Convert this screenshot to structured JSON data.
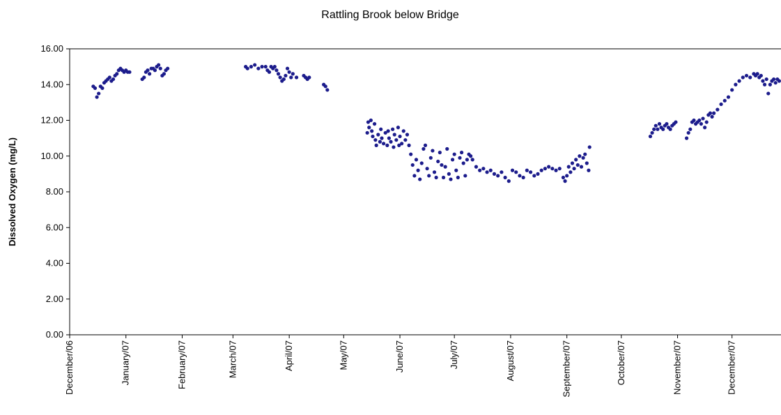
{
  "chart_data": {
    "type": "scatter",
    "title": "Rattling Brook below Bridge",
    "y_label": "Dissolved Oxygen (mg/L)",
    "xlim": [
      0,
      392
    ],
    "ylim": [
      0,
      16
    ],
    "xticks": [
      {
        "value": 0,
        "label": "December/06"
      },
      {
        "value": 31,
        "label": "January/07"
      },
      {
        "value": 62,
        "label": "February/07"
      },
      {
        "value": 90,
        "label": "March/07"
      },
      {
        "value": 121,
        "label": "April/07"
      },
      {
        "value": 151,
        "label": "May/07"
      },
      {
        "value": 182,
        "label": "June/07"
      },
      {
        "value": 212,
        "label": "July/07"
      },
      {
        "value": 243,
        "label": "August/07"
      },
      {
        "value": 274,
        "label": "September/07"
      },
      {
        "value": 304,
        "label": "October/07"
      },
      {
        "value": 335,
        "label": "November/07"
      },
      {
        "value": 365,
        "label": "December/07"
      }
    ],
    "yticks": [
      {
        "value": 0,
        "label": "0.00"
      },
      {
        "value": 2,
        "label": "2.00"
      },
      {
        "value": 4,
        "label": "4.00"
      },
      {
        "value": 6,
        "label": "6.00"
      },
      {
        "value": 8,
        "label": "8.00"
      },
      {
        "value": 10,
        "label": "10.00"
      },
      {
        "value": 12,
        "label": "12.00"
      },
      {
        "value": 14,
        "label": "14.00"
      },
      {
        "value": 16,
        "label": "16.00"
      }
    ],
    "grid": false,
    "series": [
      {
        "color": "#1c1c8c",
        "x": [
          13,
          14,
          15,
          16,
          17,
          18,
          19,
          20,
          21,
          22,
          23,
          24,
          25,
          26,
          27,
          28,
          29,
          30,
          31,
          32,
          33,
          40,
          41,
          42,
          43,
          44,
          45,
          46,
          47,
          48,
          49,
          50,
          51,
          52,
          53,
          54,
          97,
          98,
          100,
          102,
          104,
          106,
          108,
          109,
          110,
          111,
          112,
          113,
          114,
          115,
          116,
          117,
          118,
          119,
          120,
          121,
          122,
          123,
          125,
          129,
          130,
          131,
          132,
          140,
          141,
          142,
          164,
          164.5,
          165,
          166,
          166.5,
          167,
          168,
          168.5,
          169,
          170,
          171,
          171.5,
          172,
          173,
          174,
          175,
          175.5,
          176,
          177,
          178,
          178.5,
          179,
          180,
          181,
          181.5,
          182,
          183,
          184,
          185,
          186,
          187,
          188,
          189,
          190,
          191,
          192,
          193,
          194,
          195,
          196,
          197,
          198,
          199,
          200,
          201,
          202,
          203,
          204,
          205,
          206,
          207,
          208,
          209,
          210,
          211,
          212,
          213,
          214,
          215,
          216,
          217,
          218,
          219,
          220,
          221,
          222,
          224,
          226,
          228,
          230,
          232,
          234,
          236,
          238,
          240,
          242,
          244,
          246,
          248,
          250,
          252,
          254,
          256,
          258,
          260,
          262,
          264,
          266,
          268,
          270,
          272,
          273,
          274,
          275,
          276,
          277,
          278,
          279,
          280,
          281,
          282,
          283,
          284,
          285,
          286,
          286.5,
          320,
          321,
          322,
          323,
          324,
          325,
          326,
          327,
          328,
          329,
          330,
          331,
          332,
          333,
          334,
          340,
          341,
          342,
          343,
          344,
          345,
          346,
          347,
          348,
          349,
          350,
          351,
          352,
          353,
          354,
          355,
          357,
          359,
          361,
          363,
          365,
          367,
          369,
          371,
          373,
          375,
          377,
          378,
          379,
          380,
          381,
          382,
          383,
          384,
          385,
          386,
          387,
          388,
          389,
          390,
          391
        ],
        "values": [
          13.9,
          13.8,
          13.3,
          13.5,
          13.9,
          13.8,
          14.1,
          14.2,
          14.3,
          14.4,
          14.2,
          14.3,
          14.5,
          14.6,
          14.8,
          14.9,
          14.8,
          14.7,
          14.8,
          14.7,
          14.7,
          14.3,
          14.4,
          14.7,
          14.8,
          14.6,
          14.9,
          14.9,
          14.8,
          15.0,
          15.1,
          14.9,
          14.5,
          14.6,
          14.8,
          14.9,
          15.0,
          14.9,
          15.0,
          15.1,
          14.9,
          15.0,
          15.0,
          14.8,
          14.7,
          15.0,
          14.9,
          15.0,
          14.8,
          14.6,
          14.4,
          14.2,
          14.3,
          14.5,
          14.9,
          14.7,
          14.4,
          14.6,
          14.4,
          14.5,
          14.4,
          14.3,
          14.4,
          14.0,
          13.9,
          13.7,
          11.3,
          11.9,
          11.6,
          12.0,
          11.4,
          11.1,
          11.8,
          10.9,
          10.6,
          11.2,
          10.8,
          11.5,
          11.0,
          10.7,
          11.3,
          10.6,
          11.4,
          11.0,
          10.8,
          11.5,
          10.5,
          11.2,
          10.9,
          11.6,
          10.6,
          11.1,
          10.7,
          11.4,
          10.9,
          11.2,
          10.6,
          10.1,
          9.5,
          8.9,
          9.8,
          9.2,
          8.7,
          9.6,
          10.4,
          10.6,
          9.3,
          8.9,
          9.9,
          10.3,
          9.1,
          8.8,
          9.7,
          10.2,
          9.5,
          8.8,
          9.4,
          10.4,
          9.0,
          8.7,
          9.8,
          10.1,
          9.2,
          8.8,
          9.9,
          10.2,
          9.6,
          8.9,
          9.8,
          10.1,
          10.0,
          9.8,
          9.4,
          9.2,
          9.3,
          9.1,
          9.2,
          9.0,
          8.9,
          9.1,
          8.8,
          8.6,
          9.2,
          9.1,
          8.9,
          8.8,
          9.2,
          9.1,
          8.9,
          9.0,
          9.2,
          9.3,
          9.4,
          9.3,
          9.2,
          9.3,
          8.8,
          8.6,
          8.9,
          9.4,
          9.1,
          9.6,
          9.3,
          9.8,
          9.5,
          10.0,
          9.4,
          9.9,
          10.1,
          9.6,
          9.2,
          10.5,
          11.1,
          11.3,
          11.5,
          11.7,
          11.5,
          11.8,
          11.6,
          11.5,
          11.7,
          11.8,
          11.6,
          11.5,
          11.7,
          11.8,
          11.9,
          11.0,
          11.3,
          11.5,
          11.9,
          12.0,
          11.8,
          11.9,
          12.0,
          11.8,
          12.1,
          11.6,
          11.9,
          12.3,
          12.4,
          12.2,
          12.4,
          12.6,
          12.9,
          13.1,
          13.3,
          13.7,
          14.0,
          14.2,
          14.4,
          14.5,
          14.4,
          14.6,
          14.5,
          14.6,
          14.4,
          14.5,
          14.2,
          14.0,
          14.3,
          13.5,
          14.0,
          14.2,
          14.3,
          14.1,
          14.3,
          14.2
        ]
      }
    ]
  }
}
